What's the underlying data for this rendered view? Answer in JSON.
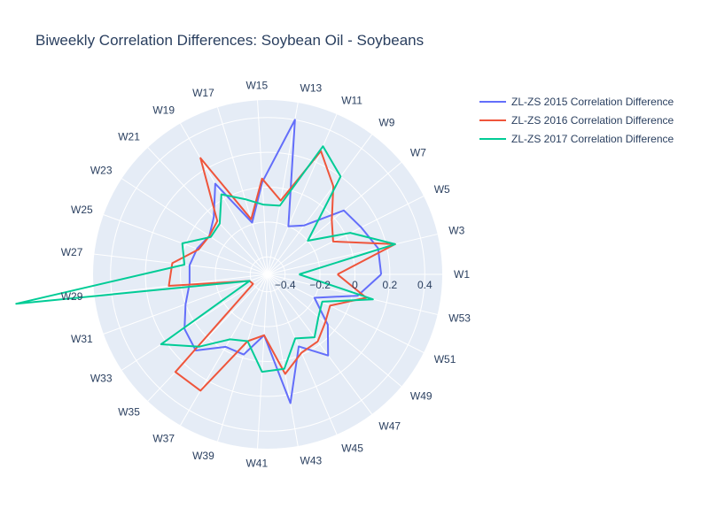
{
  "chart_data": {
    "type": "polar-line",
    "title": "Biweekly Correlation Differences: Soybean Oil - Soybeans",
    "angular_categories": [
      "W1",
      "W3",
      "W5",
      "W7",
      "W9",
      "W11",
      "W13",
      "W15",
      "W17",
      "W19",
      "W21",
      "W23",
      "W25",
      "W27",
      "W29",
      "W31",
      "W33",
      "W35",
      "W37",
      "W39",
      "W41",
      "W43",
      "W45",
      "W47",
      "W49",
      "W51",
      "W53"
    ],
    "radial_range": [
      -0.5,
      0.5
    ],
    "radial_ticks": [
      -0.4,
      -0.2,
      0,
      0.2,
      0.4
    ],
    "radial_tick_labels": [
      "−0.4",
      "−0.2",
      "0",
      "0.2",
      "0.4"
    ],
    "grid": true,
    "legend_position": "top-right",
    "series": [
      {
        "name": "ZL-ZS 2015 Correlation Difference",
        "color": "#636efa",
        "values": [
          0.15,
          0.15,
          0.1,
          0.07,
          -0.15,
          -0.2,
          0.4,
          0.03,
          -0.19,
          0.1,
          -0.05,
          -0.1,
          -0.07,
          -0.05,
          -0.05,
          0.0,
          0.07,
          0.1,
          -0.02,
          -0.02,
          -0.15,
          0.25,
          -0.05,
          0.08,
          -0.05,
          -0.2,
          0.03
        ]
      },
      {
        "name": "ZL-ZS 2016 Correlation Difference",
        "color": "#ef553b",
        "values": [
          -0.1,
          0.25,
          -0.08,
          -0.02,
          0.13,
          0.27,
          -0.07,
          0.05,
          -0.17,
          0.27,
          -0.08,
          -0.1,
          -0.08,
          0.05,
          0.07,
          -0.39,
          -0.4,
          0.27,
          0.27,
          -0.1,
          -0.15,
          0.08,
          -0.01,
          -0.02,
          -0.07,
          -0.1,
          0.08
        ]
      },
      {
        "name": "ZL-ZS 2017 Correlation Difference",
        "color": "#00cc96",
        "values": [
          -0.32,
          0.25,
          0.03,
          -0.2,
          0.2,
          0.3,
          -0.1,
          -0.1,
          -0.05,
          0.03,
          -0.1,
          -0.11,
          0.02,
          -0.02,
          0.95,
          -0.39,
          0.23,
          0.07,
          -0.07,
          -0.1,
          0.06,
          0.05,
          -0.1,
          -0.05,
          -0.12,
          -0.15,
          0.12
        ]
      }
    ]
  }
}
